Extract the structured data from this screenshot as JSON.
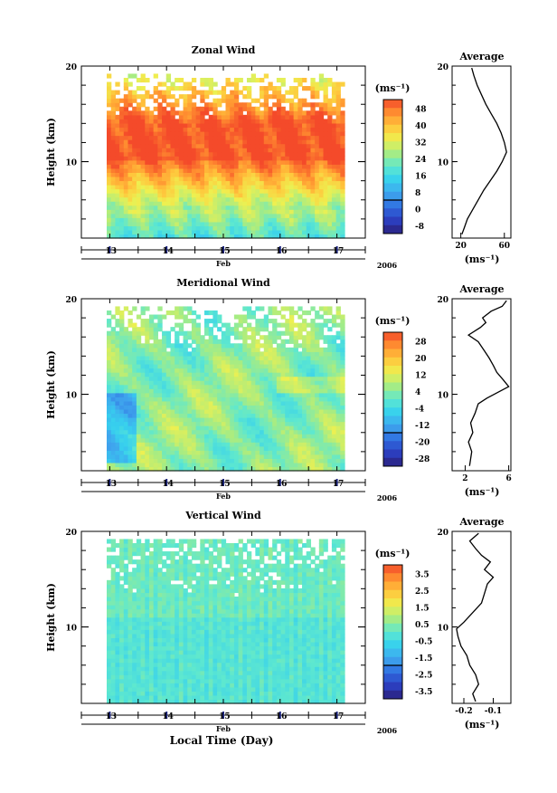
{
  "footer": {
    "time_label": "Local Time (Day)"
  },
  "chart_data": [
    {
      "type": "heatmap",
      "title": "Zonal Wind",
      "ylabel": "Height (km)",
      "xlabel": "Feb",
      "year": "2006",
      "x_ticks": [
        "13",
        "14",
        "15",
        "16",
        "17"
      ],
      "y_ticks": [
        "20",
        "10"
      ],
      "ylim": [
        2,
        20
      ],
      "colorbar": {
        "unit": "(ms⁻¹)",
        "labels": [
          "48",
          "40",
          "32",
          "24",
          "16",
          "8",
          "0",
          "-8"
        ],
        "range": [
          -12,
          52
        ]
      },
      "average": {
        "title": "Average",
        "unit": "(ms⁻¹)",
        "x_ticks": [
          "20",
          "60"
        ],
        "xlim": [
          12,
          66
        ],
        "profile": [
          [
            21,
            2.4
          ],
          [
            23,
            3
          ],
          [
            26,
            4
          ],
          [
            31,
            5
          ],
          [
            36,
            6
          ],
          [
            41,
            7
          ],
          [
            47,
            8
          ],
          [
            53,
            9
          ],
          [
            58,
            10
          ],
          [
            62,
            11
          ],
          [
            60,
            12
          ],
          [
            57,
            13
          ],
          [
            53,
            14
          ],
          [
            48,
            15
          ],
          [
            43,
            16
          ],
          [
            39,
            17
          ],
          [
            35,
            18
          ],
          [
            32,
            19
          ],
          [
            30,
            19.8
          ]
        ]
      }
    },
    {
      "type": "heatmap",
      "title": "Meridional Wind",
      "ylabel": "Height (km)",
      "xlabel": "Feb",
      "year": "2006",
      "x_ticks": [
        "13",
        "14",
        "15",
        "16",
        "17"
      ],
      "y_ticks": [
        "20",
        "10"
      ],
      "ylim": [
        2,
        20
      ],
      "colorbar": {
        "unit": "(ms⁻¹)",
        "labels": [
          "28",
          "20",
          "12",
          "4",
          "-4",
          "-12",
          "-20",
          "-28"
        ],
        "range": [
          -32,
          32
        ]
      },
      "average": {
        "title": "Average",
        "unit": "(ms⁻¹)",
        "x_ticks": [
          "2",
          "6"
        ],
        "xlim": [
          0.8,
          6.2
        ],
        "profile": [
          [
            2.4,
            2.5
          ],
          [
            2.6,
            4
          ],
          [
            2.3,
            5
          ],
          [
            2.7,
            6
          ],
          [
            2.5,
            7
          ],
          [
            2.9,
            8
          ],
          [
            3.2,
            9
          ],
          [
            4.0,
            9.6
          ],
          [
            6.0,
            10.8
          ],
          [
            5.5,
            11.5
          ],
          [
            4.9,
            12.3
          ],
          [
            4.6,
            13
          ],
          [
            4.2,
            13.8
          ],
          [
            3.8,
            14.5
          ],
          [
            3.2,
            15.5
          ],
          [
            2.3,
            16.2
          ],
          [
            3.4,
            17
          ],
          [
            3.9,
            17.5
          ],
          [
            3.6,
            18
          ],
          [
            4.4,
            18.7
          ],
          [
            5.4,
            19.2
          ],
          [
            5.8,
            19.8
          ]
        ]
      }
    },
    {
      "type": "heatmap",
      "title": "Vertical Wind",
      "ylabel": "Height (km)",
      "xlabel": "Feb",
      "year": "2006",
      "x_ticks": [
        "13",
        "14",
        "15",
        "16",
        "17"
      ],
      "y_ticks": [
        "20",
        "10"
      ],
      "ylim": [
        2,
        20
      ],
      "colorbar": {
        "unit": "(ms⁻¹)",
        "labels": [
          "3.5",
          "2.5",
          "1.5",
          "0.5",
          "-0.5",
          "-1.5",
          "-2.5",
          "-3.5"
        ],
        "range": [
          -4,
          4
        ]
      },
      "average": {
        "title": "Average",
        "unit": "(ms⁻¹)",
        "x_ticks": [
          "-0.2",
          "-0.1"
        ],
        "xlim": [
          -0.24,
          -0.04
        ],
        "profile": [
          [
            -0.16,
            2.2
          ],
          [
            -0.17,
            3
          ],
          [
            -0.15,
            4
          ],
          [
            -0.16,
            5
          ],
          [
            -0.18,
            6
          ],
          [
            -0.19,
            7
          ],
          [
            -0.21,
            8
          ],
          [
            -0.22,
            9
          ],
          [
            -0.225,
            9.8
          ],
          [
            -0.2,
            10.5
          ],
          [
            -0.17,
            11.5
          ],
          [
            -0.14,
            12.5
          ],
          [
            -0.13,
            13.5
          ],
          [
            -0.12,
            14.5
          ],
          [
            -0.1,
            15.2
          ],
          [
            -0.13,
            16
          ],
          [
            -0.11,
            16.8
          ],
          [
            -0.14,
            17.5
          ],
          [
            -0.16,
            18.2
          ],
          [
            -0.18,
            19
          ],
          [
            -0.15,
            19.8
          ]
        ]
      }
    }
  ]
}
